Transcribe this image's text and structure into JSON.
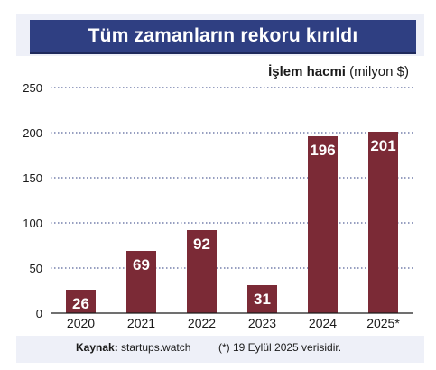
{
  "title": "Tüm zamanların rekoru kırıldı",
  "metric": {
    "bold": "İşlem hacmi",
    "unit": "(milyon $)"
  },
  "chart_data": {
    "type": "bar",
    "categories": [
      "2020",
      "2021",
      "2022",
      "2023",
      "2024",
      "2025*"
    ],
    "values": [
      26,
      69,
      92,
      31,
      196,
      201
    ],
    "ylim": [
      0,
      250
    ],
    "yticks": [
      0,
      50,
      100,
      150,
      200,
      250
    ],
    "grid": true,
    "bar_color": "#7b2a36"
  },
  "footer": {
    "source_label": "Kaynak:",
    "source_value": " startups.watch",
    "note": "(*) 19 Eylül 2025 verisidir."
  },
  "colors": {
    "banner": "#2f3f82",
    "frame": "#eef0f8",
    "bar": "#7b2a36"
  }
}
